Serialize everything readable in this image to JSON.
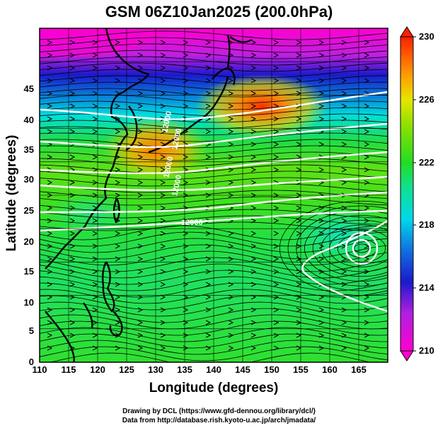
{
  "title": "GSM 06Z10Jan2025 (200.0hPa)",
  "xlabel": "Longitude (degrees)",
  "ylabel": "Latitude  (degrees)",
  "credits": {
    "line1": "Drawing by DCL (https://www.gfd-dennou.org/library/dcl/)",
    "line2": "Data from http://database.rish.kyoto-u.ac.jp/arch/jmadata/"
  },
  "x_ticks": [
    "110",
    "115",
    "120",
    "125",
    "130",
    "135",
    "140",
    "145",
    "150",
    "155",
    "160",
    "165"
  ],
  "y_ticks": [
    "0",
    "5",
    "10",
    "15",
    "20",
    "25",
    "30",
    "35",
    "40",
    "45"
  ],
  "colorbar": {
    "ticks": [
      "210",
      "214",
      "218",
      "222",
      "226",
      "230"
    ],
    "range": [
      210,
      230
    ]
  },
  "colors": {
    "magenta": "#ff00d0",
    "blue": "#1a1acc",
    "cyan": "#00e6e6",
    "green": "#22dd22",
    "yellow": "#e6e600",
    "orange": "#ff8c00",
    "red": "#ff2a00"
  },
  "chart_data": {
    "type": "heatmap",
    "title": "GSM 06Z10Jan2025 (200.0hPa)",
    "xlabel": "Longitude (degrees)",
    "ylabel": "Latitude  (degrees)",
    "xlim": [
      110,
      170
    ],
    "ylim": [
      0,
      50
    ],
    "colorbar_range": [
      210,
      230
    ],
    "features": {
      "contour_labels": [
        "12000",
        "12000",
        "12000",
        "12000",
        "12000"
      ],
      "cyclone_center": {
        "lon": 165,
        "lat": 19
      },
      "warm_max": {
        "lon": 145,
        "lat": 39,
        "value": 228
      },
      "cold_min": {
        "lon": 118,
        "lat": 48,
        "value": 210
      }
    }
  }
}
